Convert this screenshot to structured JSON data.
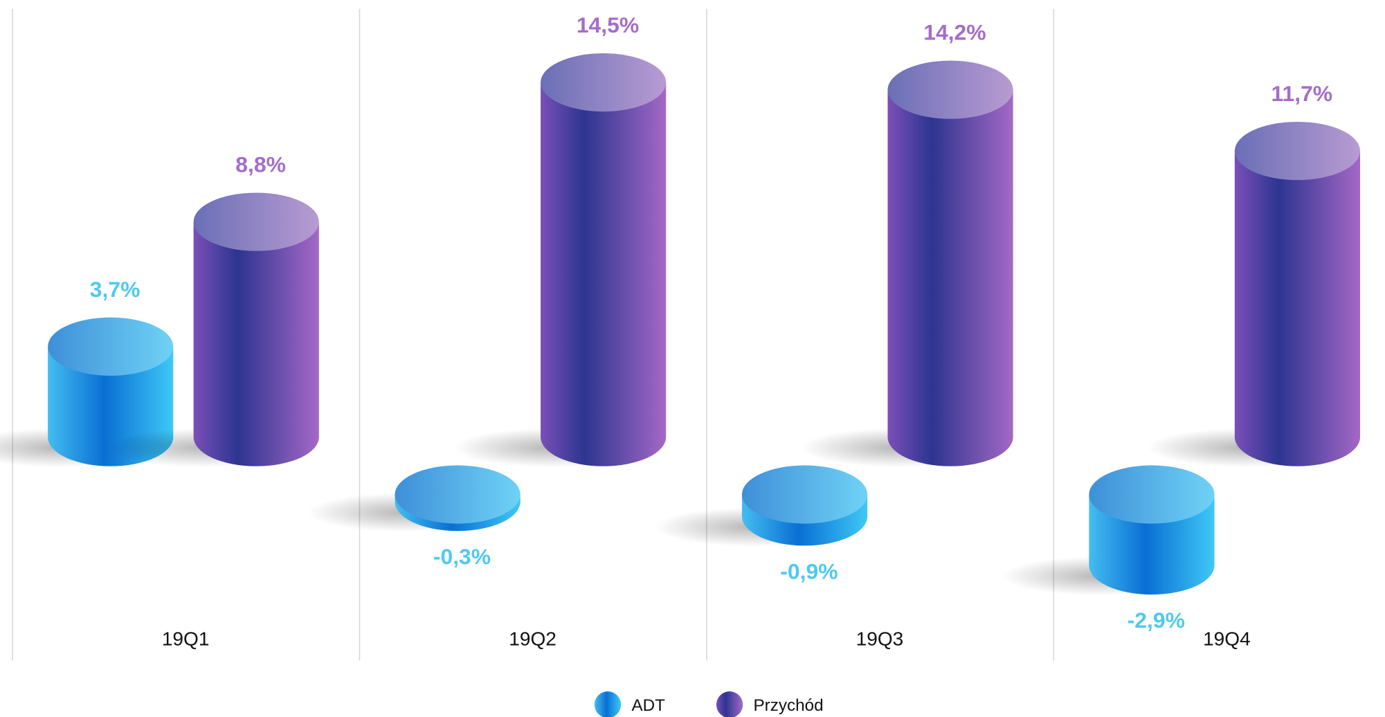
{
  "chart_data": {
    "type": "bar",
    "categories": [
      "19Q1",
      "19Q2",
      "19Q3",
      "19Q4"
    ],
    "series": [
      {
        "name": "ADT",
        "color": "#4fc9f0",
        "values": [
          3.7,
          -0.3,
          -0.9,
          -2.9
        ],
        "value_labels": [
          "3,7%",
          "-0,3%",
          "-0,9%",
          "-2,9%"
        ]
      },
      {
        "name": "Przychód",
        "color": "#a66cc8",
        "values": [
          8.8,
          14.5,
          14.2,
          11.7
        ],
        "value_labels": [
          "8,8%",
          "14,5%",
          "14,2%",
          "11,7%"
        ]
      }
    ],
    "legend": "bottom"
  }
}
